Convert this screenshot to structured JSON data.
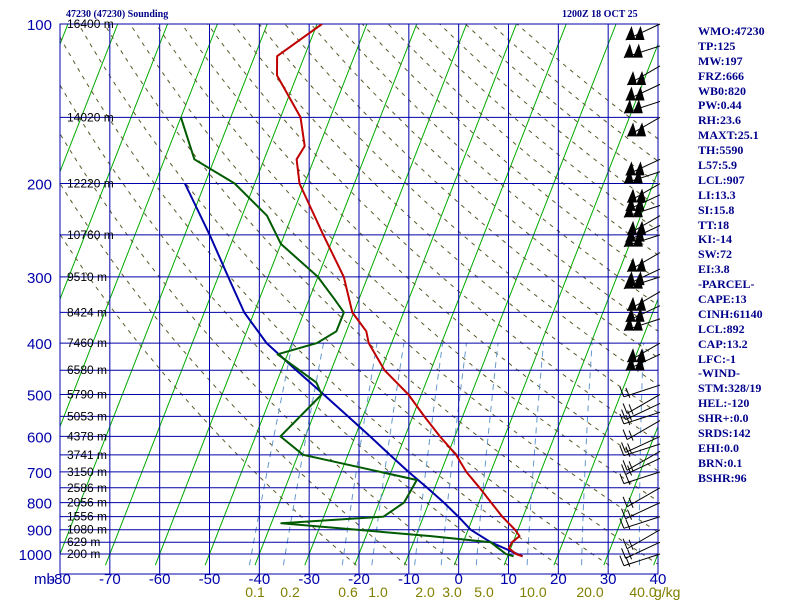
{
  "header": {
    "station": "47230 (47230) Sounding",
    "time": "1200Z 18 OCT 25"
  },
  "indices": [
    "WMO:47230",
    "TP:125",
    "MW:197",
    "FRZ:666",
    "WB0:820",
    "PW:0.44",
    "RH:23.6",
    "MAXT:25.1",
    "TH:5590",
    "L57:5.9",
    "LCL:907",
    "LI:13.3",
    "SI:15.8",
    "TT:18",
    "KI:-14",
    "SW:72",
    "EI:3.8",
    "-PARCEL-",
    "CAPE:13",
    "CINH:61140",
    "LCL:892",
    "CAP:13.2",
    "LFC:-1",
    "-WIND-",
    "STM:328/19",
    "HEL:-120",
    "SHR+:0.0",
    "SRDS:142",
    "EHI:0.0",
    "BRN:0.1",
    "BSHR:96"
  ],
  "colors": {
    "grid": "#0000aa",
    "isotherm": "#00aa00",
    "dry_adiabat": "#5a5a2a",
    "mixing_ratio": "#6699cc",
    "temperature": "#c00000",
    "dewpoint": "#005a00",
    "parcel": "#0000aa",
    "axis_text": "#0000aa",
    "mixing_text": "#808000",
    "height_text": "#000000"
  },
  "chart_data": {
    "type": "skew-t",
    "xlim": [
      -80,
      40
    ],
    "pressure_levels": [
      100,
      200,
      300,
      400,
      500,
      600,
      700,
      800,
      900,
      1000
    ],
    "temperature_ticks": [
      -80,
      -70,
      -60,
      -50,
      -40,
      -30,
      -20,
      -10,
      0,
      10,
      20,
      30,
      40
    ],
    "temperature_tick_labels": [
      "-80",
      "-70",
      "-60",
      "-50",
      "-40",
      "-30",
      "-20",
      "-10",
      "0",
      "10",
      "20",
      "30",
      "40"
    ],
    "y_unit": "mb",
    "height_labels": [
      {
        "p": 100,
        "text": "16400 m"
      },
      {
        "p": 150,
        "text": "14020 m"
      },
      {
        "p": 200,
        "text": "12220 m"
      },
      {
        "p": 250,
        "text": "10760 m"
      },
      {
        "p": 300,
        "text": "9510 m"
      },
      {
        "p": 350,
        "text": "8424 m"
      },
      {
        "p": 400,
        "text": "7460 m"
      },
      {
        "p": 450,
        "text": "6580 m"
      },
      {
        "p": 500,
        "text": "5790 m"
      },
      {
        "p": 550,
        "text": "5053 m"
      },
      {
        "p": 600,
        "text": "4378 m"
      },
      {
        "p": 650,
        "text": "3741 m"
      },
      {
        "p": 700,
        "text": "3150 m"
      },
      {
        "p": 750,
        "text": "2586 m"
      },
      {
        "p": 800,
        "text": "2056 m"
      },
      {
        "p": 850,
        "text": "1556 m"
      },
      {
        "p": 900,
        "text": "1080 m"
      },
      {
        "p": 950,
        "text": "629 m"
      },
      {
        "p": 1000,
        "text": "200 m"
      }
    ],
    "mixing_ratio_labels": [
      "0.1",
      "0.2",
      "0.6",
      "1.0",
      "2.0",
      "3.0",
      "5.0",
      "10.0",
      "20.0",
      "40.0"
    ],
    "mixing_ratio_unit": "g/kg",
    "mixing_ratio_values": [
      0.1,
      0.2,
      0.6,
      1.0,
      2.0,
      3.0,
      5.0,
      10.0,
      20.0,
      40.0
    ],
    "temperature": [
      {
        "p": 1010,
        "t": 13.0
      },
      {
        "p": 1000,
        "t": 11.5
      },
      {
        "p": 975,
        "t": 9.6
      },
      {
        "p": 950,
        "t": 9.8
      },
      {
        "p": 925,
        "t": 10.8
      },
      {
        "p": 900,
        "t": 9.4
      },
      {
        "p": 850,
        "t": 5.8
      },
      {
        "p": 800,
        "t": 2.5
      },
      {
        "p": 750,
        "t": -1.0
      },
      {
        "p": 700,
        "t": -4.9
      },
      {
        "p": 650,
        "t": -8.3
      },
      {
        "p": 600,
        "t": -13.0
      },
      {
        "p": 550,
        "t": -17.7
      },
      {
        "p": 500,
        "t": -22.6
      },
      {
        "p": 450,
        "t": -29.3
      },
      {
        "p": 400,
        "t": -34.6
      },
      {
        "p": 380,
        "t": -36.0
      },
      {
        "p": 350,
        "t": -40.3
      },
      {
        "p": 300,
        "t": -44.8
      },
      {
        "p": 250,
        "t": -52.2
      },
      {
        "p": 200,
        "t": -61.0
      },
      {
        "p": 180,
        "t": -63.5
      },
      {
        "p": 170,
        "t": -62.9
      },
      {
        "p": 150,
        "t": -66.0
      },
      {
        "p": 125,
        "t": -74.0
      },
      {
        "p": 115,
        "t": -75.5
      },
      {
        "p": 100,
        "t": -69.0
      }
    ],
    "dewpoint": [
      {
        "p": 1010,
        "t": 11.2
      },
      {
        "p": 1000,
        "t": 9.5
      },
      {
        "p": 975,
        "t": 7.5
      },
      {
        "p": 950,
        "t": 5.5
      },
      {
        "p": 925,
        "t": -7.0
      },
      {
        "p": 875,
        "t": -38.0
      },
      {
        "p": 850,
        "t": -18.0
      },
      {
        "p": 800,
        "t": -15.0
      },
      {
        "p": 725,
        "t": -14.2
      },
      {
        "p": 650,
        "t": -39.0
      },
      {
        "p": 600,
        "t": -45.0
      },
      {
        "p": 500,
        "t": -40.0
      },
      {
        "p": 475,
        "t": -42.0
      },
      {
        "p": 420,
        "t": -52.0
      },
      {
        "p": 400,
        "t": -45.0
      },
      {
        "p": 380,
        "t": -42.0
      },
      {
        "p": 350,
        "t": -42.0
      },
      {
        "p": 330,
        "t": -45.0
      },
      {
        "p": 300,
        "t": -50.0
      },
      {
        "p": 260,
        "t": -60.0
      },
      {
        "p": 230,
        "t": -65.0
      },
      {
        "p": 200,
        "t": -74.0
      },
      {
        "p": 180,
        "t": -84.0
      },
      {
        "p": 150,
        "t": -90.0
      }
    ],
    "parcel": [
      {
        "p": 1010,
        "t": 13.0
      },
      {
        "p": 950,
        "t": 5.5
      },
      {
        "p": 900,
        "t": 0.5
      },
      {
        "p": 850,
        "t": -3.0
      },
      {
        "p": 800,
        "t": -7.0
      },
      {
        "p": 750,
        "t": -11.5
      },
      {
        "p": 700,
        "t": -16.5
      },
      {
        "p": 650,
        "t": -21.6
      },
      {
        "p": 600,
        "t": -27.0
      },
      {
        "p": 550,
        "t": -33.0
      },
      {
        "p": 500,
        "t": -39.6
      },
      {
        "p": 450,
        "t": -47.0
      },
      {
        "p": 400,
        "t": -55.1
      },
      {
        "p": 350,
        "t": -62.0
      },
      {
        "p": 300,
        "t": -68.0
      },
      {
        "p": 250,
        "t": -75.0
      },
      {
        "p": 200,
        "t": -84.0
      }
    ]
  }
}
